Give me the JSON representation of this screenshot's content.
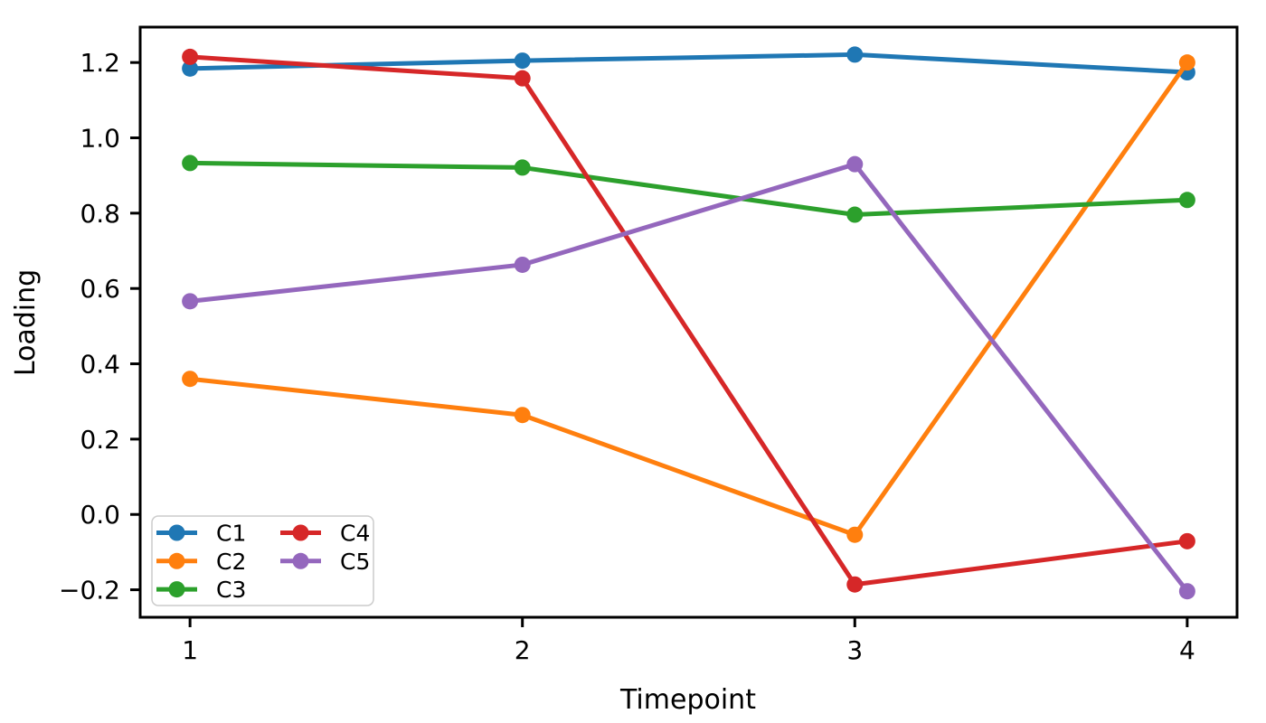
{
  "chart_data": {
    "type": "line",
    "title": "",
    "xlabel": "Timepoint",
    "ylabel": "Loading",
    "x": [
      1,
      2,
      3,
      4
    ],
    "series": [
      {
        "name": "C1",
        "color": "#1f77b4",
        "values": [
          1.184,
          1.205,
          1.221,
          1.174
        ]
      },
      {
        "name": "C2",
        "color": "#ff7f0e",
        "values": [
          0.36,
          0.264,
          -0.054,
          1.2
        ]
      },
      {
        "name": "C3",
        "color": "#2ca02c",
        "values": [
          0.933,
          0.921,
          0.796,
          0.835
        ]
      },
      {
        "name": "C4",
        "color": "#d62728",
        "values": [
          1.215,
          1.158,
          -0.186,
          -0.071
        ]
      },
      {
        "name": "C5",
        "color": "#9467bd",
        "values": [
          0.566,
          0.663,
          0.93,
          -0.204
        ]
      }
    ],
    "xlim": [
      0.85,
      4.15
    ],
    "ylim": [
      -0.273,
      1.294
    ],
    "xticks": {
      "values": [
        1,
        2,
        3,
        4
      ],
      "labels": [
        "1",
        "2",
        "3",
        "4"
      ]
    },
    "yticks": {
      "values": [
        -0.2,
        0.0,
        0.2,
        0.4,
        0.6,
        0.8,
        1.0,
        1.2
      ],
      "labels": [
        "−0.2",
        "0.0",
        "0.2",
        "0.4",
        "0.6",
        "0.8",
        "1.0",
        "1.2"
      ]
    },
    "grid": false,
    "marker": "circle",
    "legend": {
      "position": "lower left",
      "columns": 2,
      "entries": [
        "C1",
        "C2",
        "C3",
        "C4",
        "C5"
      ],
      "border_color": "#cccccc",
      "background": "#ffffff"
    },
    "colors": {
      "text": "#000000",
      "spine": "#000000",
      "background": "#ffffff"
    }
  }
}
